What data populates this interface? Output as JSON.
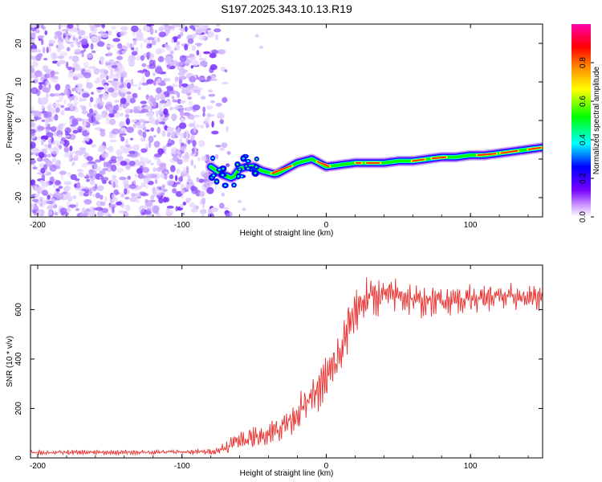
{
  "chart_data": [
    {
      "type": "heatmap",
      "title": "S197.2025.343.10.13.R19",
      "xlabel": "Height of straight line (km)",
      "ylabel": "Frequency (Hz)",
      "xlim": [
        -205,
        150
      ],
      "ylim": [
        -25,
        25
      ],
      "x_ticks": [
        -200,
        -100,
        0,
        100
      ],
      "y_ticks": [
        -20,
        -10,
        0,
        10,
        20
      ],
      "noise_region_x": [
        -205,
        -78
      ],
      "ridge": {
        "x": [
          -80,
          -72,
          -65,
          -60,
          -55,
          -50,
          -45,
          -40,
          -35,
          -30,
          -25,
          -20,
          -15,
          -10,
          -5,
          0,
          10,
          20,
          30,
          40,
          50,
          60,
          70,
          80,
          90,
          100,
          110,
          120,
          130,
          140,
          150
        ],
        "freq": [
          -12,
          -14,
          -15,
          -12.5,
          -12,
          -12,
          -13,
          -13.5,
          -14,
          -13,
          -12,
          -11,
          -10.5,
          -10,
          -11,
          -12,
          -11.5,
          -11,
          -11,
          -11,
          -10.5,
          -10.5,
          -10,
          -9.5,
          -9.5,
          -9,
          -9,
          -8.5,
          -8,
          -7.5,
          -7
        ]
      },
      "colorbar": {
        "label": "Normalized spectral amplitude",
        "range": [
          0,
          1
        ],
        "ticks": [
          "0.0",
          "0.2",
          "0.4",
          "0.6",
          "0.8"
        ],
        "colors": [
          "#ffffff",
          "#cc99ff",
          "#7700ff",
          "#0000ff",
          "#00ffff",
          "#00ff00",
          "#ffff00",
          "#ff8800",
          "#ff0000",
          "#ff00aa"
        ]
      }
    },
    {
      "type": "line",
      "title": "",
      "xlabel": "Height of straight line (km)",
      "ylabel": "SNR (10 * v/v)",
      "xlim": [
        -205,
        150
      ],
      "ylim": [
        0,
        780
      ],
      "x_ticks": [
        -200,
        -100,
        0,
        100
      ],
      "y_ticks": [
        0,
        200,
        400,
        600
      ],
      "color": "#e8312f",
      "series": [
        {
          "name": "SNR",
          "x": [
            -205,
            -150,
            -100,
            -80,
            -70,
            -60,
            -50,
            -40,
            -30,
            -20,
            -10,
            0,
            10,
            15,
            20,
            25,
            30,
            40,
            50,
            60,
            70,
            80,
            90,
            100,
            110,
            120,
            130,
            140,
            150
          ],
          "mean": [
            22,
            22,
            24,
            25,
            40,
            75,
            80,
            100,
            130,
            180,
            240,
            320,
            420,
            520,
            600,
            630,
            650,
            660,
            660,
            640,
            630,
            640,
            640,
            645,
            650,
            650,
            650,
            645,
            650
          ],
          "amplitude": [
            10,
            10,
            10,
            12,
            30,
            45,
            45,
            50,
            60,
            70,
            80,
            90,
            100,
            110,
            110,
            100,
            90,
            70,
            70,
            70,
            60,
            60,
            60,
            60,
            55,
            55,
            55,
            55,
            55
          ]
        }
      ]
    }
  ],
  "colors": {
    "plot_line": "#e8312f",
    "axis": "#000000",
    "background": "#ffffff"
  }
}
